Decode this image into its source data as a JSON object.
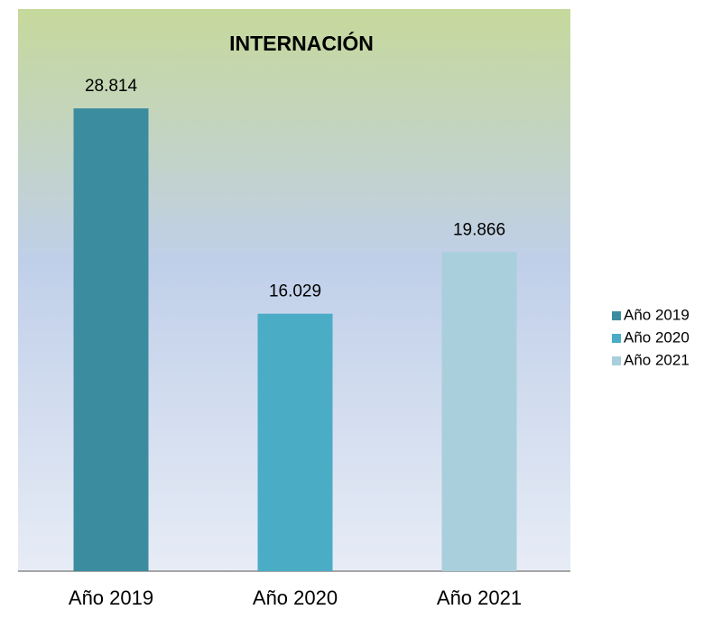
{
  "chart_data": {
    "type": "bar",
    "title": "INTERNACIÓN",
    "categories": [
      "Año 2019",
      "Año 2020",
      "Año 2021"
    ],
    "values": [
      28814,
      16029,
      19866
    ],
    "value_labels": [
      "28.814",
      "16.029",
      "19.866"
    ],
    "colors": [
      "#3c8ca0",
      "#4bacc6",
      "#a9cfdc"
    ],
    "ylim": [
      0,
      35000
    ],
    "legend": "right"
  }
}
